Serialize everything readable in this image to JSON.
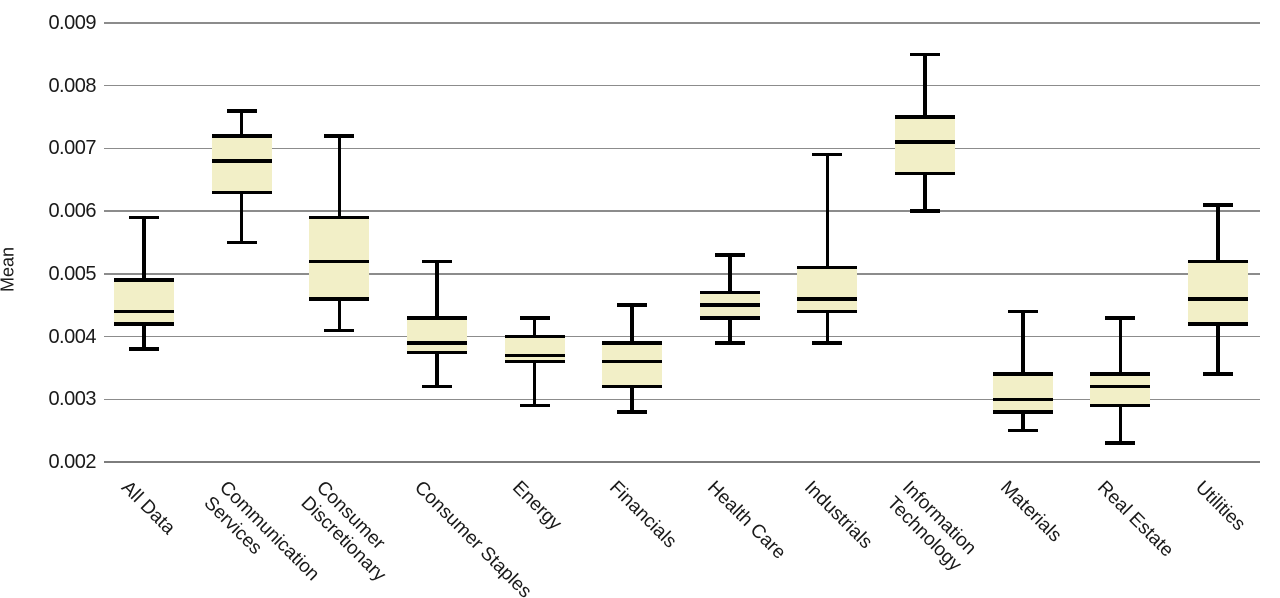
{
  "chart_data": {
    "type": "boxplot",
    "title": "",
    "xlabel": "",
    "ylabel": "Mean",
    "ylim": [
      0.002,
      0.009
    ],
    "grid": true,
    "legend": "none",
    "yticks": [
      0.009,
      0.008,
      0.007,
      0.006,
      0.005,
      0.004,
      0.003,
      0.002
    ],
    "ytick_labels": [
      "0.009",
      "0.008",
      "0.007",
      "0.006",
      "0.005",
      "0.004",
      "0.003",
      "0.002"
    ],
    "categories": [
      "All Data",
      "Communication Services",
      "Consumer Discretionary",
      "Consumer Staples",
      "Energy",
      "Financials",
      "Health Care",
      "Industrials",
      "Information Technology",
      "Materials",
      "Real Estate",
      "Utilities"
    ],
    "category_display_lines": [
      [
        "All Data"
      ],
      [
        "Communication",
        "Services"
      ],
      [
        "Consumer",
        "Discretionary"
      ],
      [
        "Consumer Staples"
      ],
      [
        "Energy"
      ],
      [
        "Financials"
      ],
      [
        "Health Care"
      ],
      [
        "Industrials"
      ],
      [
        "Information",
        "Technology"
      ],
      [
        "Materials"
      ],
      [
        "Real Estate"
      ],
      [
        "Utilities"
      ]
    ],
    "series": [
      {
        "name": "All Data",
        "whisker_low": 0.0038,
        "q1": 0.0042,
        "median": 0.0044,
        "q3": 0.0049,
        "whisker_high": 0.0059
      },
      {
        "name": "Communication Services",
        "whisker_low": 0.0055,
        "q1": 0.0063,
        "median": 0.0068,
        "q3": 0.0072,
        "whisker_high": 0.0076
      },
      {
        "name": "Consumer Discretionary",
        "whisker_low": 0.0041,
        "q1": 0.0046,
        "median": 0.0052,
        "q3": 0.0059,
        "whisker_high": 0.0072
      },
      {
        "name": "Consumer Staples",
        "whisker_low": 0.0032,
        "q1": 0.00375,
        "median": 0.0039,
        "q3": 0.0043,
        "whisker_high": 0.0052
      },
      {
        "name": "Energy",
        "whisker_low": 0.0029,
        "q1": 0.0036,
        "median": 0.0037,
        "q3": 0.004,
        "whisker_high": 0.0043
      },
      {
        "name": "Financials",
        "whisker_low": 0.0028,
        "q1": 0.0032,
        "median": 0.0036,
        "q3": 0.0039,
        "whisker_high": 0.0045
      },
      {
        "name": "Health Care",
        "whisker_low": 0.0039,
        "q1": 0.0043,
        "median": 0.0045,
        "q3": 0.0047,
        "whisker_high": 0.0053
      },
      {
        "name": "Industrials",
        "whisker_low": 0.0039,
        "q1": 0.0044,
        "median": 0.0046,
        "q3": 0.0051,
        "whisker_high": 0.0069
      },
      {
        "name": "Information Technology",
        "whisker_low": 0.006,
        "q1": 0.0066,
        "median": 0.0071,
        "q3": 0.0075,
        "whisker_high": 0.0085
      },
      {
        "name": "Materials",
        "whisker_low": 0.0025,
        "q1": 0.0028,
        "median": 0.003,
        "q3": 0.0034,
        "whisker_high": 0.0044
      },
      {
        "name": "Real Estate",
        "whisker_low": 0.0023,
        "q1": 0.0029,
        "median": 0.0032,
        "q3": 0.0034,
        "whisker_high": 0.0043
      },
      {
        "name": "Utilities",
        "whisker_low": 0.0034,
        "q1": 0.0042,
        "median": 0.0046,
        "q3": 0.0052,
        "whisker_high": 0.0061
      }
    ],
    "colors": {
      "box_fill": "#F2EFC7",
      "box_line": "#000000",
      "gridline": "#8c8c8c",
      "axis_line": "#7d7d7d",
      "text": "#1a1a1a",
      "background": "#ffffff"
    }
  }
}
